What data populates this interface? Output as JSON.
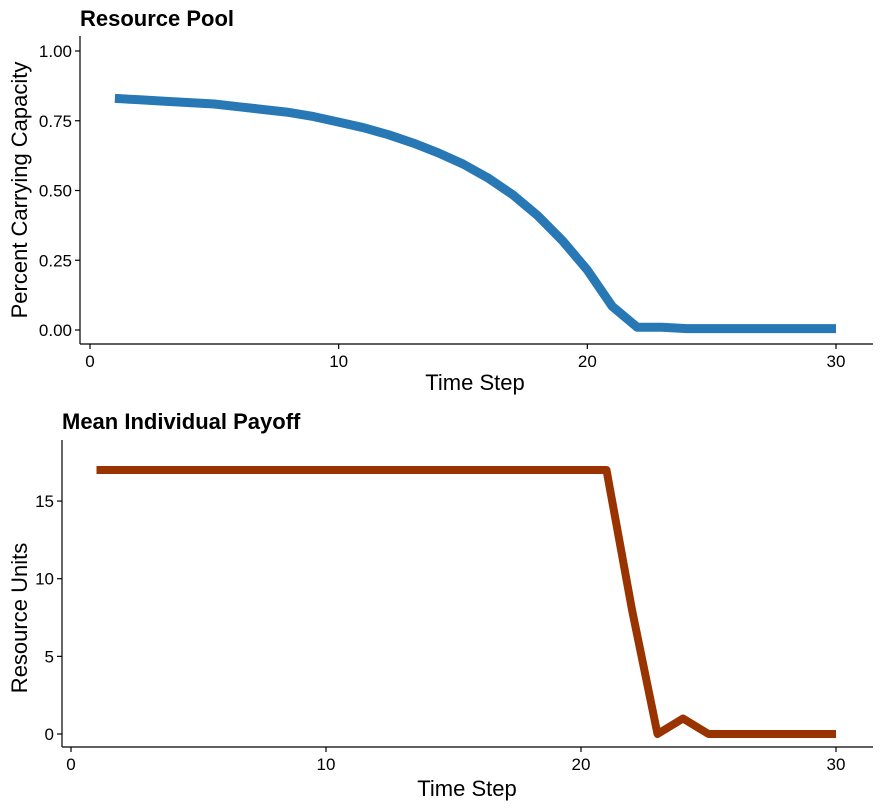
{
  "chart_data": [
    {
      "type": "line",
      "title": "Resource Pool",
      "xlabel": "Time Step",
      "ylabel": "Percent Carrying Capacity",
      "xlim": [
        0,
        30
      ],
      "ylim": [
        0,
        1.0
      ],
      "x_ticks": [
        0,
        10,
        20,
        30
      ],
      "x_tick_labels": [
        "0",
        "10",
        "20",
        "30"
      ],
      "y_ticks": [
        0,
        0.25,
        0.5,
        0.75,
        1.0
      ],
      "y_tick_labels": [
        "0.00",
        "0.25",
        "0.50",
        "0.75",
        "1.00"
      ],
      "grid": false,
      "color": "#2878b5",
      "series": [
        {
          "x": [
            1,
            2,
            3,
            4,
            5,
            6,
            7,
            8,
            9,
            10,
            11,
            12,
            13,
            14,
            15,
            16,
            17,
            18,
            19,
            20,
            21,
            22,
            23,
            24,
            25,
            26,
            27,
            28,
            29,
            30
          ],
          "values": [
            0.83,
            0.825,
            0.82,
            0.815,
            0.81,
            0.8,
            0.79,
            0.78,
            0.765,
            0.745,
            0.725,
            0.7,
            0.67,
            0.635,
            0.595,
            0.545,
            0.485,
            0.41,
            0.32,
            0.215,
            0.085,
            0.01,
            0.01,
            0.005,
            0.005,
            0.005,
            0.005,
            0.005,
            0.005,
            0.005
          ]
        }
      ]
    },
    {
      "type": "line",
      "title": "Mean Individual Payoff",
      "xlabel": "Time Step",
      "ylabel": "Resource Units",
      "xlim": [
        0,
        30
      ],
      "ylim": [
        0,
        17
      ],
      "x_ticks": [
        0,
        10,
        20,
        30
      ],
      "x_tick_labels": [
        "0",
        "10",
        "20",
        "30"
      ],
      "y_ticks": [
        0,
        5,
        10,
        15
      ],
      "y_tick_labels": [
        "0",
        "5",
        "10",
        "15"
      ],
      "grid": false,
      "color": "#993300",
      "series": [
        {
          "x": [
            1,
            2,
            3,
            4,
            5,
            6,
            7,
            8,
            9,
            10,
            11,
            12,
            13,
            14,
            15,
            16,
            17,
            18,
            19,
            20,
            21,
            22,
            23,
            24,
            25,
            26,
            27,
            28,
            29,
            30
          ],
          "values": [
            17,
            17,
            17,
            17,
            17,
            17,
            17,
            17,
            17,
            17,
            17,
            17,
            17,
            17,
            17,
            17,
            17,
            17,
            17,
            17,
            17,
            8,
            0,
            1,
            0,
            0,
            0,
            0,
            0,
            0
          ]
        }
      ]
    }
  ]
}
